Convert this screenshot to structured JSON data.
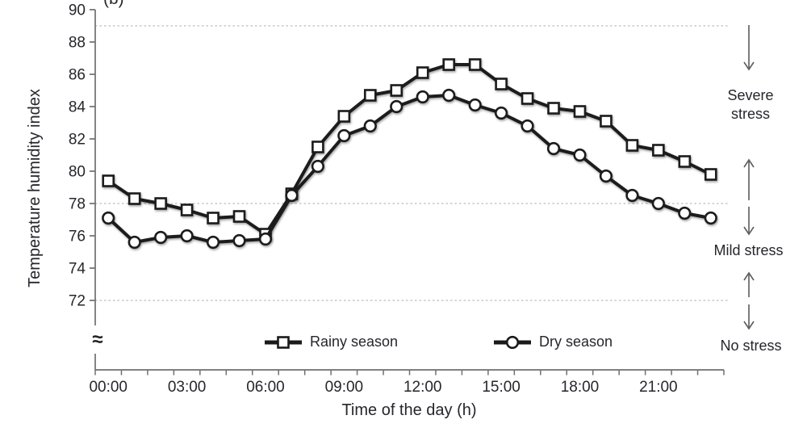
{
  "figure": {
    "panel_label": "(b)",
    "y_axis_break_symbol": "≈"
  },
  "chart_data": {
    "type": "line",
    "title": "",
    "xlabel": "Time of the day (h)",
    "ylabel": "Temperature humidity index",
    "x": [
      "00:00",
      "01:00",
      "02:00",
      "03:00",
      "04:00",
      "05:00",
      "06:00",
      "07:00",
      "08:00",
      "09:00",
      "10:00",
      "11:00",
      "12:00",
      "13:00",
      "14:00",
      "15:00",
      "16:00",
      "17:00",
      "18:00",
      "19:00",
      "20:00",
      "21:00",
      "22:00",
      "23:00"
    ],
    "x_tick_labels": [
      "00:00",
      "03:00",
      "06:00",
      "09:00",
      "12:00",
      "15:00",
      "18:00",
      "21:00"
    ],
    "x_label_step_hours": 3,
    "y_ticks": [
      90,
      88,
      86,
      84,
      82,
      80,
      78,
      76,
      74,
      72
    ],
    "ylim": [
      72,
      90
    ],
    "y_axis_break": true,
    "grid": "off",
    "reference_lines": {
      "style": "dotted",
      "values": [
        89,
        78,
        72
      ]
    },
    "legend_position": "bottom-inside",
    "series": [
      {
        "name": "Rainy season",
        "marker": "square",
        "values": [
          79.4,
          78.3,
          78.0,
          77.6,
          77.1,
          77.2,
          76.1,
          78.6,
          81.5,
          83.4,
          84.7,
          85.0,
          86.1,
          86.6,
          86.6,
          85.4,
          84.5,
          83.9,
          83.7,
          83.1,
          81.6,
          81.3,
          80.6,
          79.8
        ]
      },
      {
        "name": "Dry season",
        "marker": "circle",
        "values": [
          77.1,
          75.6,
          75.9,
          76.0,
          75.6,
          75.7,
          75.8,
          78.5,
          80.3,
          82.2,
          82.8,
          84.0,
          84.6,
          84.7,
          84.1,
          83.6,
          82.8,
          81.4,
          81.0,
          79.7,
          78.5,
          78.0,
          77.4,
          77.1
        ]
      }
    ],
    "annotations": [
      {
        "text": "Severe stress",
        "arrow": "down",
        "near_reference_line": 89
      },
      {
        "text": "Mild stress",
        "arrow": "up-down",
        "near_reference_line": 78
      },
      {
        "text": "No stress",
        "arrow": "up-down",
        "near_reference_line": 72
      }
    ]
  },
  "colors": {
    "background": "#ffffff",
    "series_line": "#1a1a1a",
    "marker_fill": "#ffffff",
    "axis": "#6f6f6f",
    "text": "#26262c",
    "reference_line": "#bcbcbc",
    "annotation_arrow": "#5c5c5c"
  }
}
